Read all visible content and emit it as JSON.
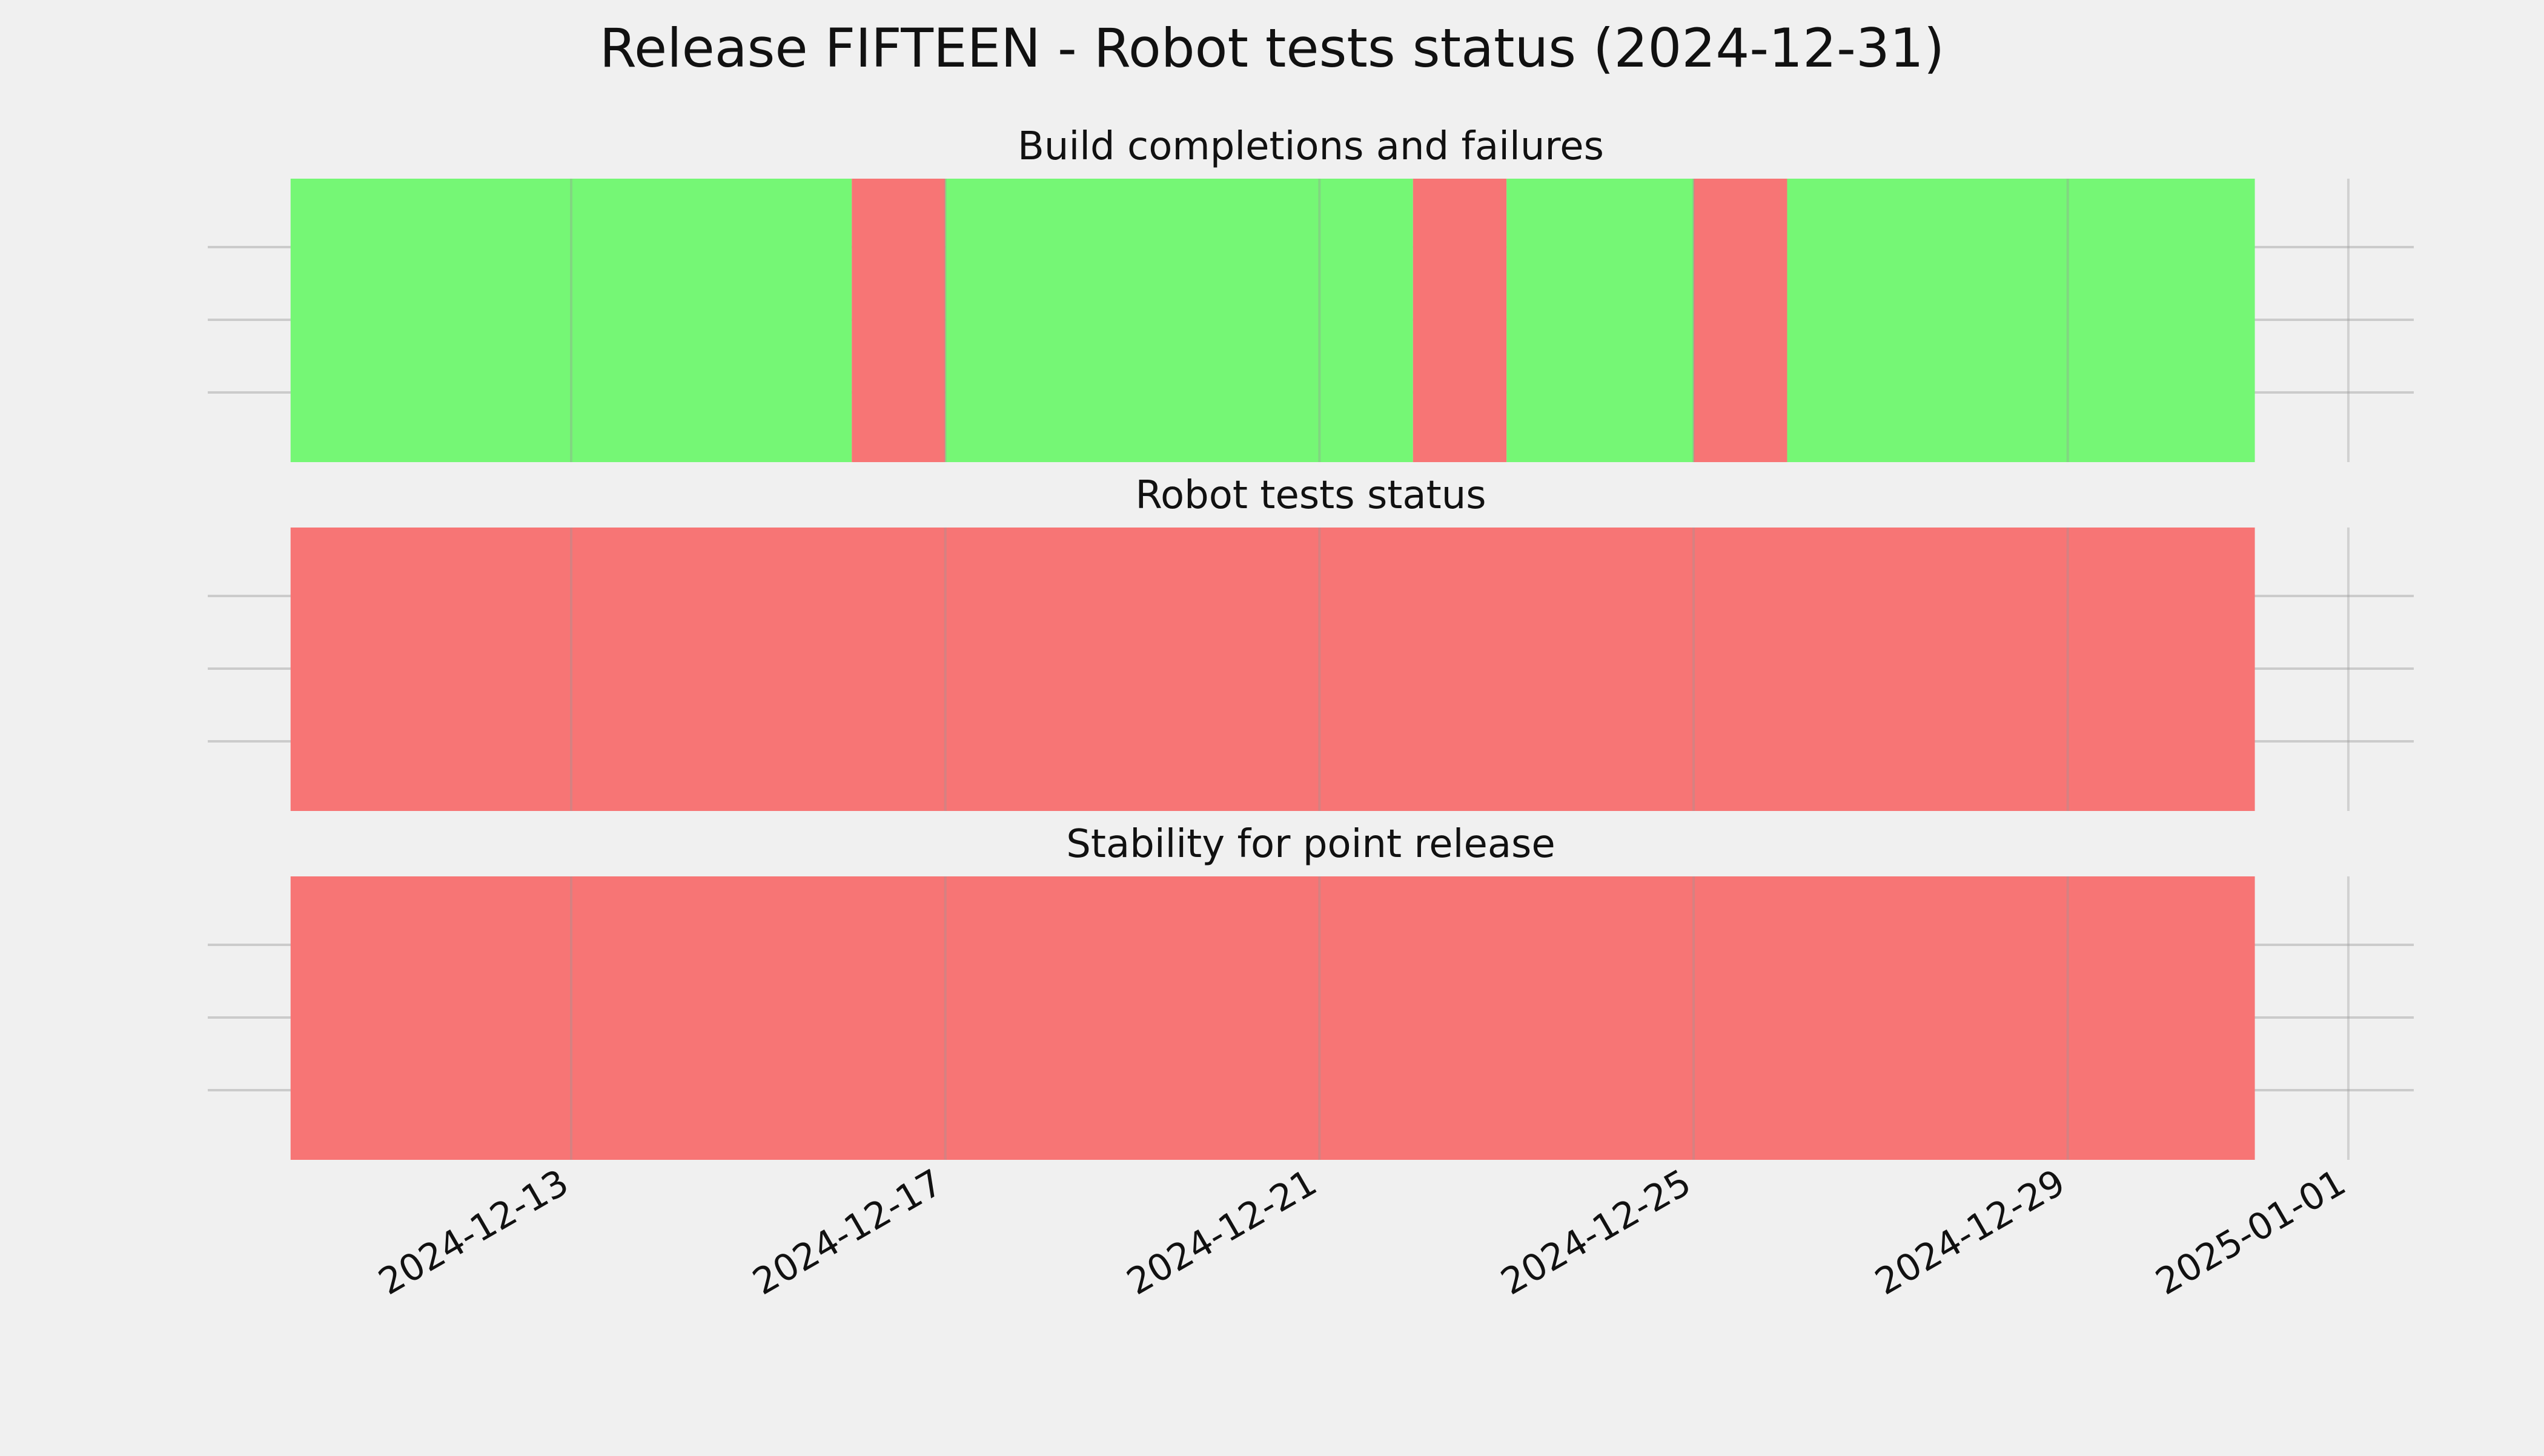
{
  "title": "Release FIFTEEN - Robot tests status (2024-12-31)",
  "colors": {
    "background": "#f0f0f0",
    "pass": "#75f775",
    "fail": "#f77575",
    "grid": "#cbcbcb"
  },
  "chart_data": {
    "type": "timeline",
    "x_range": [
      "2024-12-10",
      "2025-01-01"
    ],
    "x_ticks": [
      "2024-12-13",
      "2024-12-17",
      "2024-12-21",
      "2024-12-25",
      "2024-12-29",
      "2025-01-01"
    ],
    "grid": true,
    "panels": [
      {
        "title": "Build completions and failures",
        "segments": [
          {
            "start": "2024-12-10",
            "end": "2024-12-16",
            "status": "pass"
          },
          {
            "start": "2024-12-16",
            "end": "2024-12-17",
            "status": "fail"
          },
          {
            "start": "2024-12-17",
            "end": "2024-12-22",
            "status": "pass"
          },
          {
            "start": "2024-12-22",
            "end": "2024-12-23",
            "status": "fail"
          },
          {
            "start": "2024-12-23",
            "end": "2024-12-25",
            "status": "pass"
          },
          {
            "start": "2024-12-25",
            "end": "2024-12-26",
            "status": "fail"
          },
          {
            "start": "2024-12-26",
            "end": "2024-12-31",
            "status": "pass"
          }
        ]
      },
      {
        "title": "Robot tests status",
        "segments": [
          {
            "start": "2024-12-10",
            "end": "2024-12-31",
            "status": "fail"
          }
        ]
      },
      {
        "title": "Stability for point release",
        "segments": [
          {
            "start": "2024-12-10",
            "end": "2024-12-31",
            "status": "fail"
          }
        ]
      }
    ]
  }
}
